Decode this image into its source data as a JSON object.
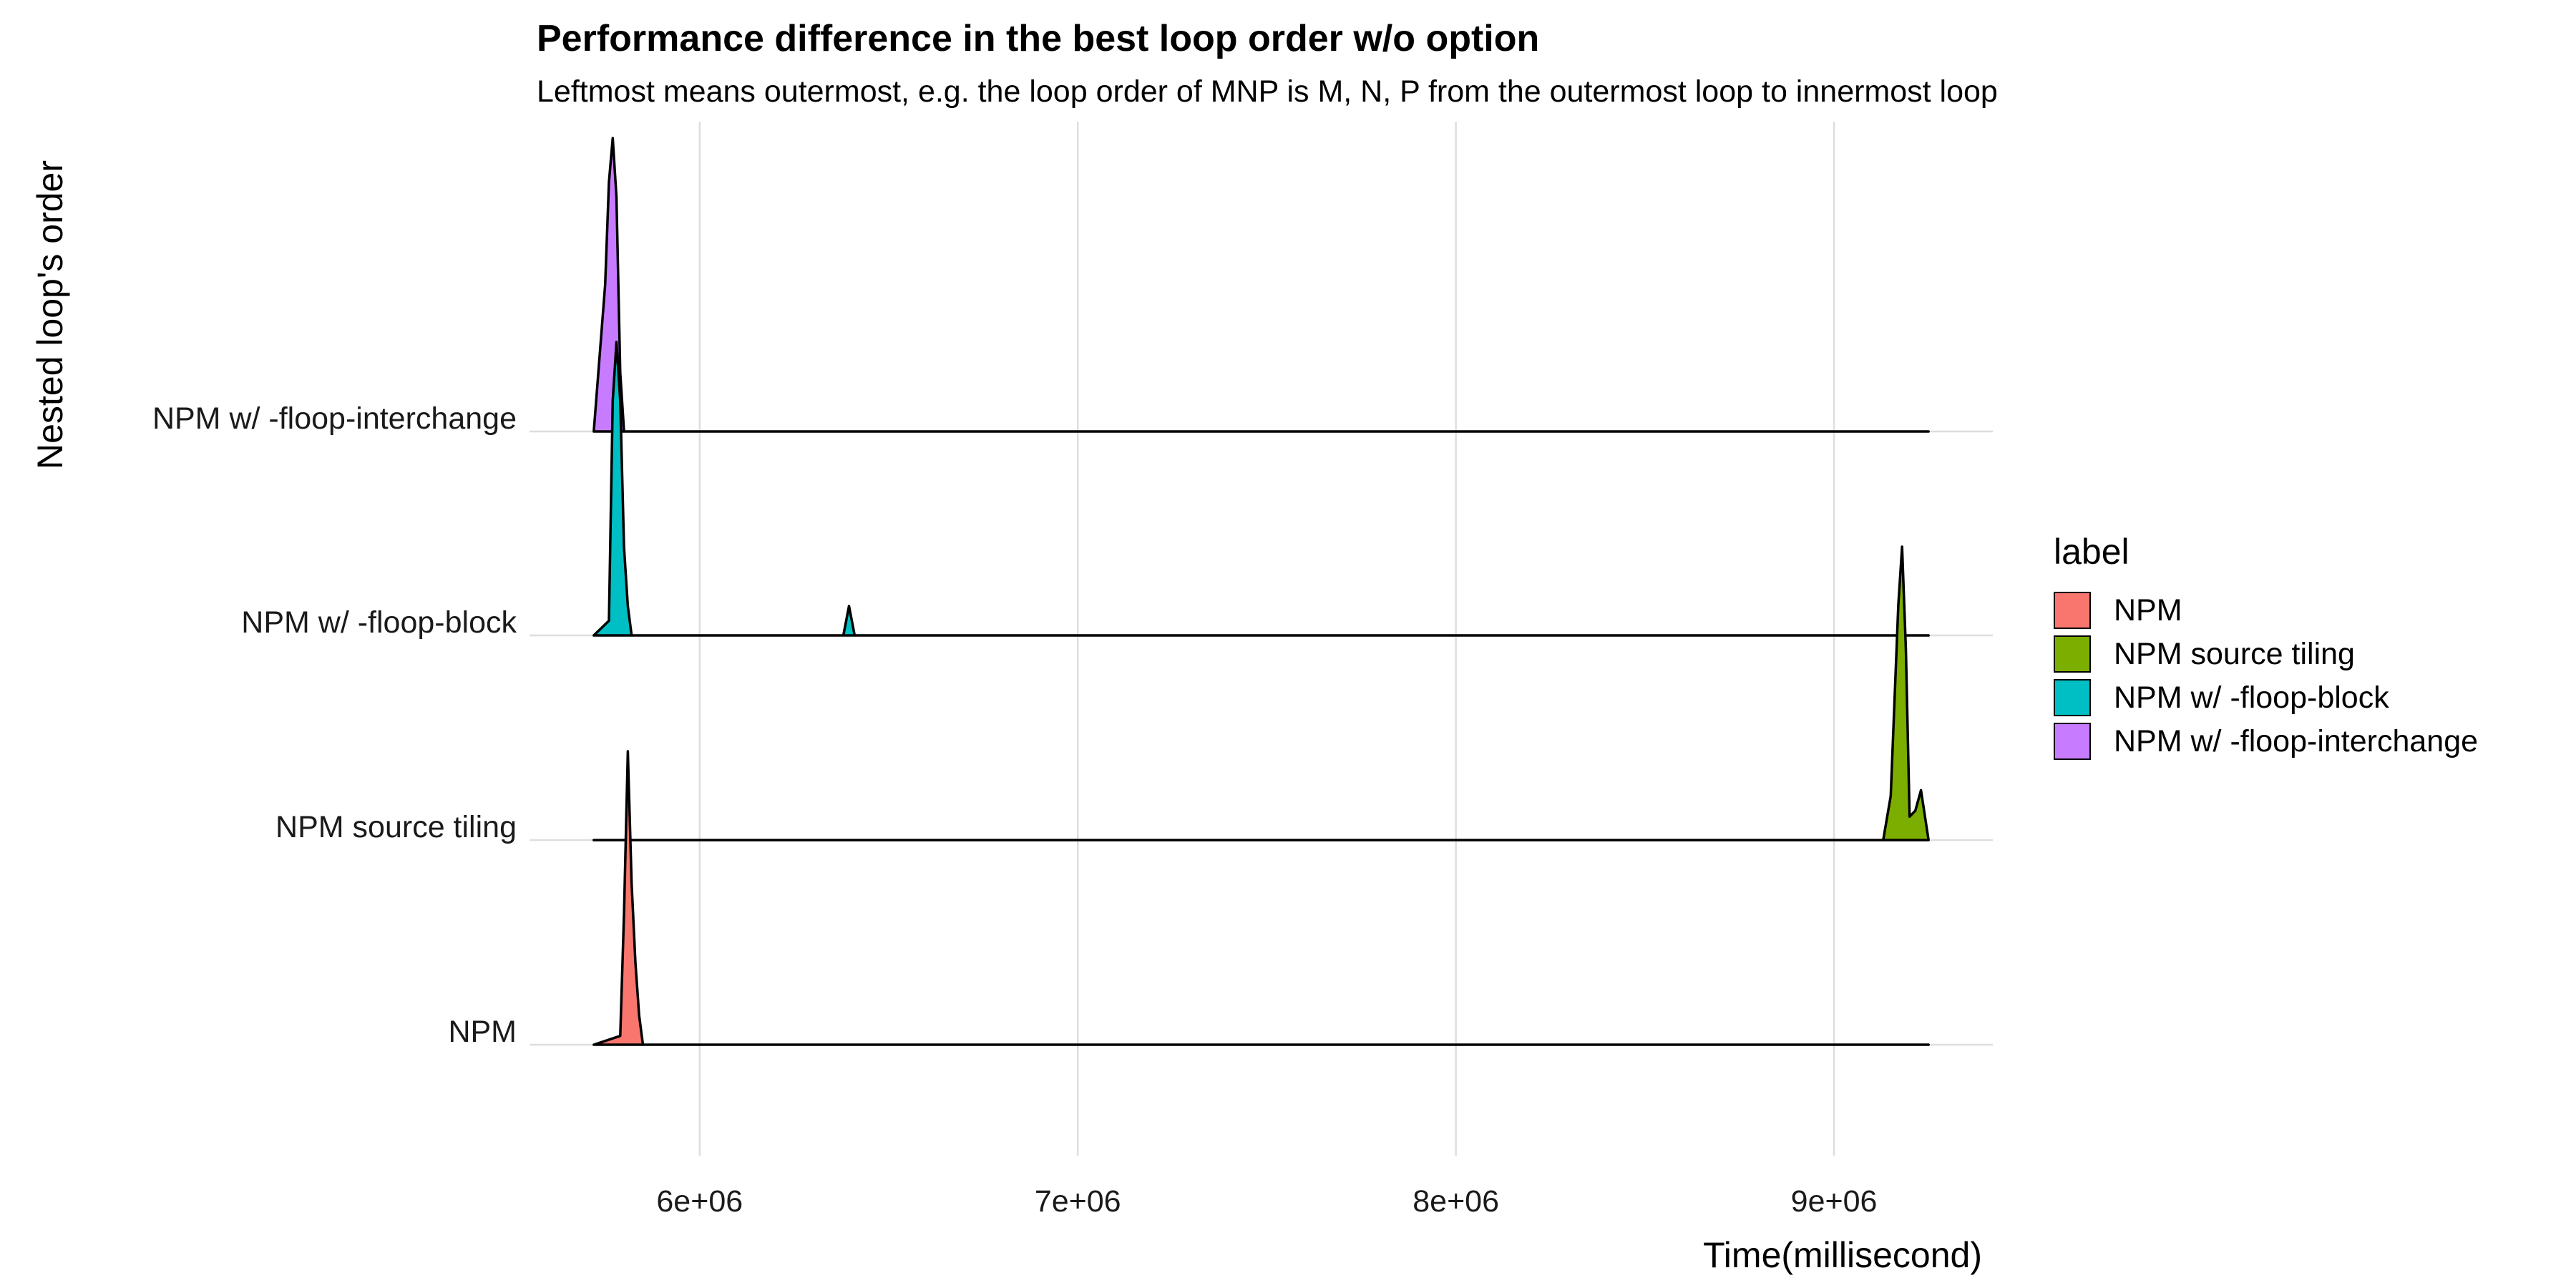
{
  "title": "Performance difference in the best loop order w/o option",
  "subtitle": "Leftmost means outermost, e.g. the loop order of MNP is M, N, P from the outermost loop to innermost loop",
  "chart_data": {
    "type": "area",
    "subtype": "ridgeline",
    "xlabel": "Time(millisecond)",
    "ylabel": "Nested loop's order",
    "xlim": [
      5550000,
      9420000
    ],
    "x_ticks": [
      6000000,
      7000000,
      8000000,
      9000000
    ],
    "x_tick_labels": [
      "6e+06",
      "7e+06",
      "8e+06",
      "9e+06"
    ],
    "grid": true,
    "legend_title": "label",
    "legend_position": "right",
    "categories": [
      "NPM",
      "NPM source tiling",
      "NPM w/ -floop-block",
      "NPM w/ -floop-interchange"
    ],
    "series": [
      {
        "name": "NPM",
        "color": "#F8766D",
        "x": [
          5720000,
          5790000,
          5800000,
          5810000,
          5820000,
          5830000,
          5840000,
          5850000,
          9250000
        ],
        "y": [
          0.0,
          0.03,
          0.45,
          1.0,
          0.55,
          0.28,
          0.1,
          0.0,
          0.0
        ]
      },
      {
        "name": "NPM source tiling",
        "color": "#7CAE00",
        "x": [
          5720000,
          9130000,
          9150000,
          9170000,
          9180000,
          9190000,
          9200000,
          9215000,
          9230000,
          9250000
        ],
        "y": [
          0.0,
          0.0,
          0.15,
          0.8,
          1.0,
          0.65,
          0.08,
          0.1,
          0.17,
          0.0
        ]
      },
      {
        "name": "NPM w/ -floop-block",
        "color": "#00BFC4",
        "x": [
          5720000,
          5760000,
          5770000,
          5780000,
          5790000,
          5800000,
          5810000,
          5820000,
          6380000,
          6395000,
          6410000,
          9250000
        ],
        "y": [
          0.0,
          0.05,
          0.8,
          1.0,
          0.8,
          0.3,
          0.1,
          0.0,
          0.0,
          0.1,
          0.0,
          0.0
        ]
      },
      {
        "name": "NPM w/ -floop-interchange",
        "color": "#C77CFF",
        "x": [
          5720000,
          5750000,
          5760000,
          5770000,
          5780000,
          5790000,
          5800000,
          9250000
        ],
        "y": [
          0.0,
          0.5,
          0.85,
          1.0,
          0.8,
          0.2,
          0.0,
          0.0
        ]
      }
    ]
  }
}
